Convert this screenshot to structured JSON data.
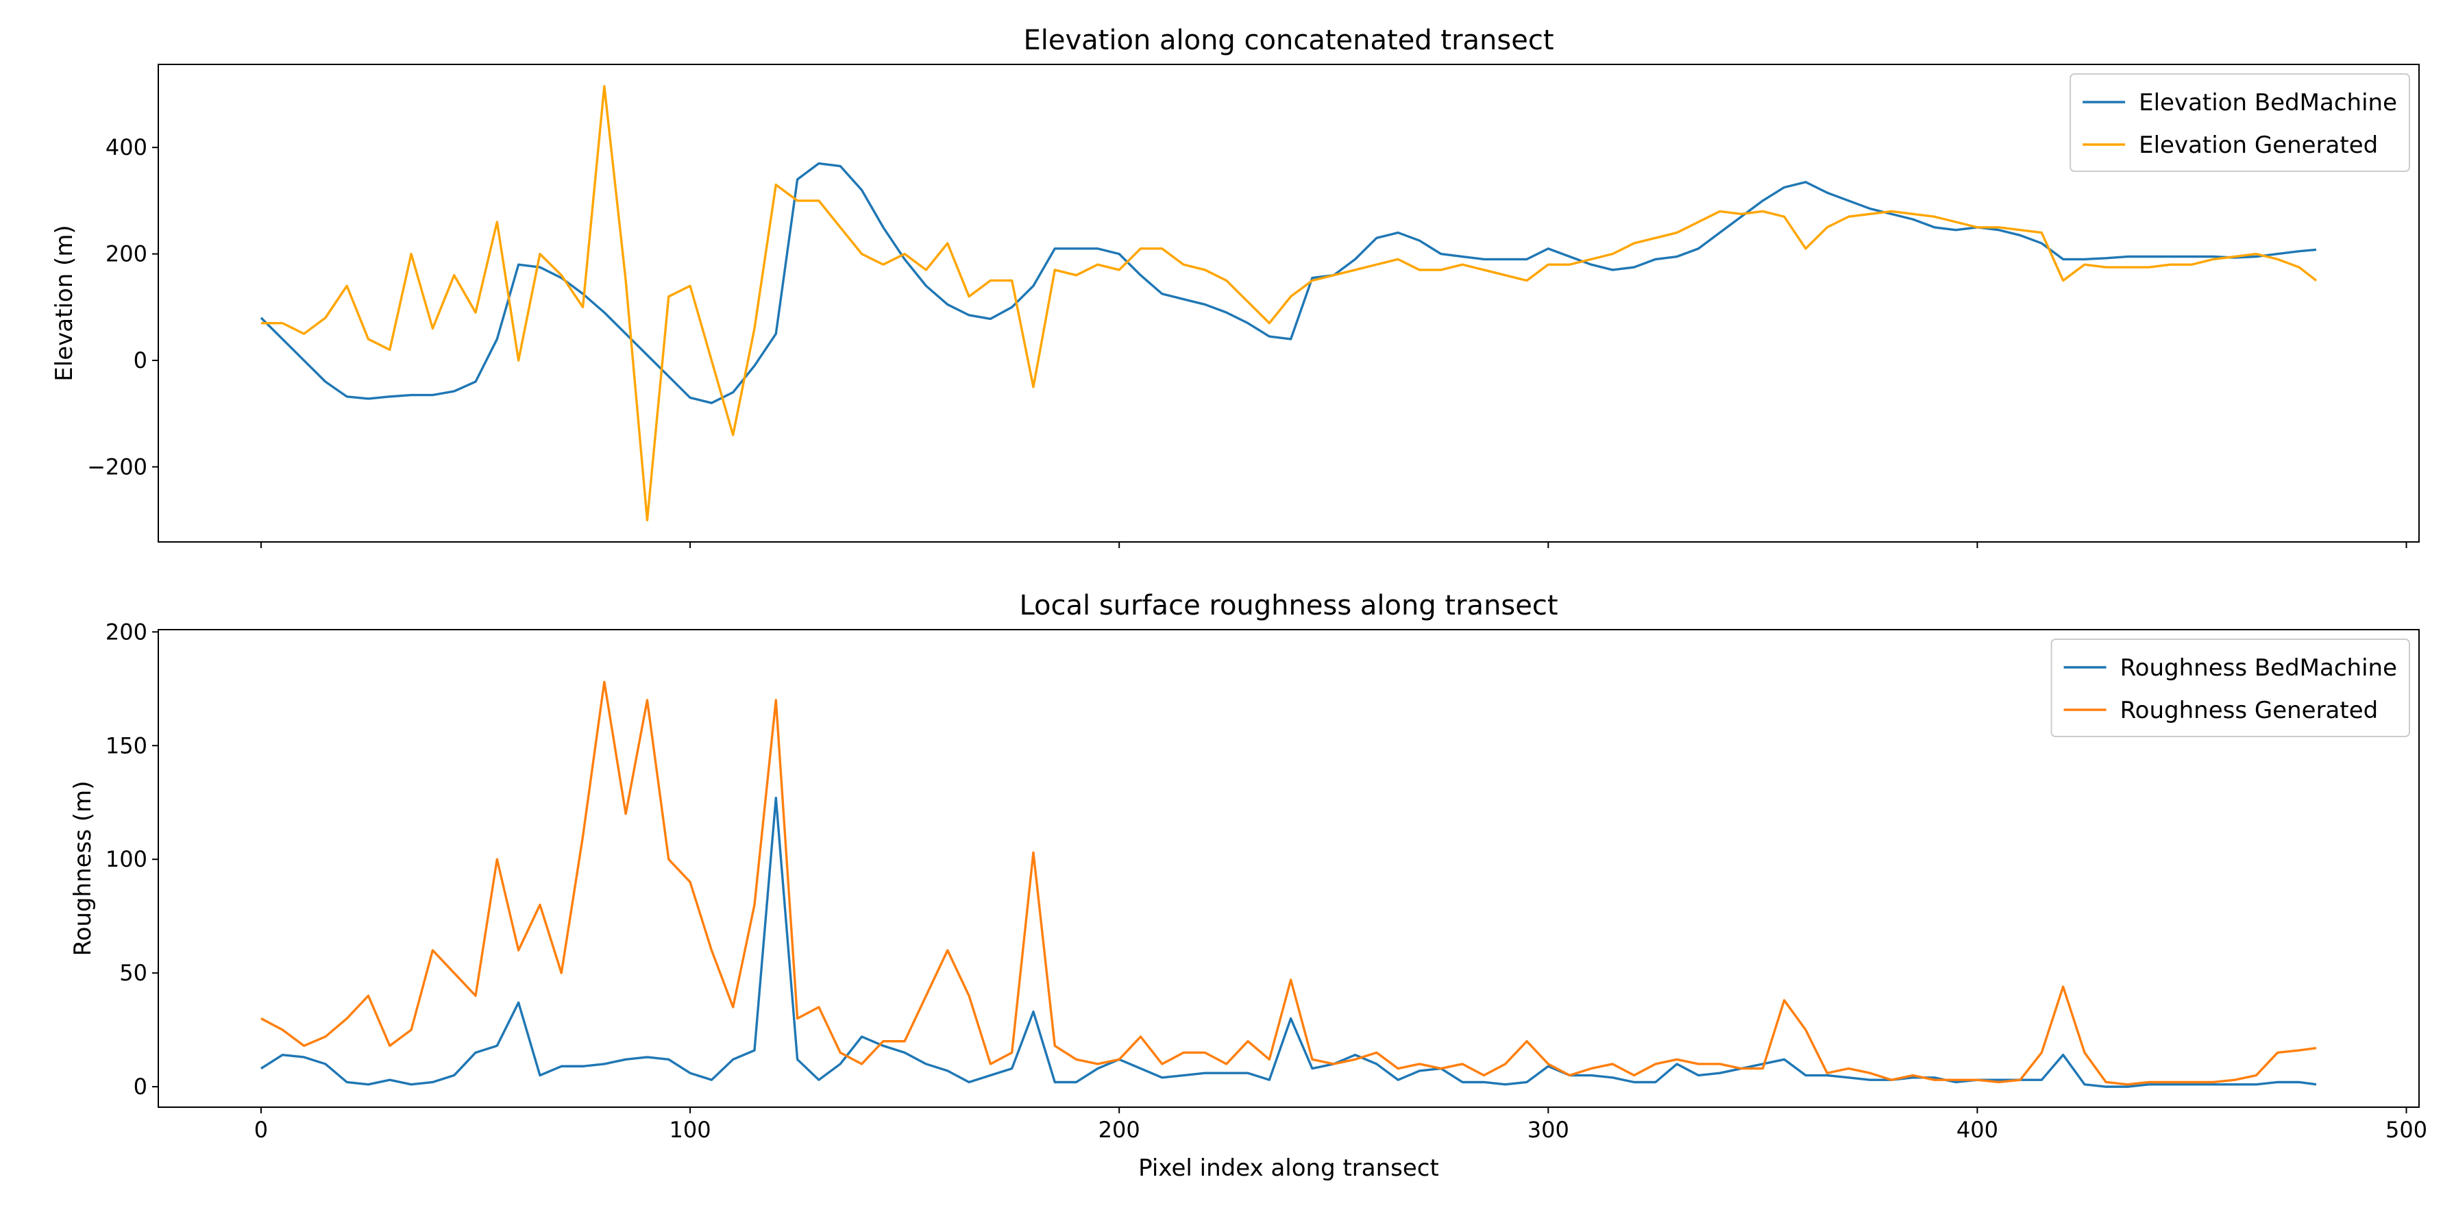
{
  "chart_data": [
    {
      "type": "line",
      "title": "Elevation along concatenated transect",
      "ylabel": "Elevation (m)",
      "xlim": [
        -23.95,
        502.95
      ],
      "ylim": [
        -341,
        556
      ],
      "yticks": [
        {
          "value": -200,
          "label": "−200"
        },
        0,
        200,
        400
      ],
      "legend": "upper right",
      "x": [
        0,
        5,
        10,
        15,
        20,
        25,
        30,
        35,
        40,
        45,
        50,
        55,
        60,
        65,
        70,
        75,
        80,
        85,
        90,
        95,
        100,
        105,
        110,
        115,
        120,
        125,
        130,
        135,
        140,
        145,
        150,
        155,
        160,
        165,
        170,
        175,
        180,
        185,
        190,
        195,
        200,
        205,
        210,
        215,
        220,
        225,
        230,
        235,
        240,
        245,
        250,
        255,
        260,
        265,
        270,
        275,
        280,
        285,
        290,
        295,
        300,
        305,
        310,
        315,
        320,
        325,
        330,
        335,
        340,
        345,
        350,
        355,
        360,
        365,
        370,
        375,
        380,
        385,
        390,
        395,
        400,
        405,
        410,
        415,
        420,
        425,
        430,
        435,
        440,
        445,
        450,
        455,
        460,
        465,
        470,
        475,
        479
      ],
      "series": [
        {
          "name": "Elevation BedMachine",
          "color": "#1f77b4",
          "values": [
            80,
            40,
            0,
            -40,
            -68,
            -72,
            -68,
            -65,
            -65,
            -58,
            -40,
            40,
            180,
            175,
            155,
            125,
            90,
            50,
            10,
            -30,
            -70,
            -80,
            -60,
            -10,
            50,
            340,
            370,
            365,
            320,
            250,
            190,
            140,
            105,
            85,
            78,
            100,
            140,
            210,
            210,
            210,
            200,
            160,
            125,
            115,
            105,
            90,
            70,
            45,
            40,
            155,
            160,
            190,
            230,
            240,
            225,
            200,
            195,
            190,
            190,
            190,
            210,
            195,
            180,
            170,
            175,
            190,
            195,
            210,
            240,
            270,
            300,
            325,
            335,
            315,
            300,
            285,
            275,
            265,
            250,
            245,
            250,
            245,
            235,
            220,
            190,
            190,
            192,
            195,
            195,
            195,
            195,
            195,
            193,
            195,
            200,
            205,
            208
          ]
        },
        {
          "name": "Elevation Generated",
          "color": "#ffa500",
          "values": [
            70,
            70,
            50,
            80,
            140,
            40,
            20,
            200,
            60,
            160,
            90,
            260,
            0,
            200,
            160,
            100,
            515,
            150,
            -300,
            120,
            140,
            0,
            -140,
            60,
            330,
            300,
            300,
            250,
            200,
            180,
            200,
            170,
            220,
            120,
            150,
            150,
            -50,
            170,
            160,
            180,
            170,
            210,
            210,
            180,
            170,
            150,
            110,
            70,
            120,
            150,
            160,
            170,
            180,
            190,
            170,
            170,
            180,
            170,
            160,
            150,
            180,
            180,
            190,
            200,
            220,
            230,
            240,
            260,
            280,
            275,
            280,
            270,
            210,
            250,
            270,
            275,
            280,
            275,
            270,
            260,
            250,
            250,
            245,
            240,
            150,
            180,
            175,
            175,
            175,
            180,
            180,
            190,
            195,
            200,
            190,
            175,
            150
          ]
        }
      ]
    },
    {
      "type": "line",
      "title": "Local surface roughness along transect",
      "xlabel": "Pixel index along transect",
      "ylabel": "Roughness (m)",
      "xlim": [
        -23.95,
        502.95
      ],
      "xticks": [
        0,
        100,
        200,
        300,
        400,
        500
      ],
      "ylim": [
        -9,
        201
      ],
      "yticks": [
        0,
        50,
        100,
        150,
        200
      ],
      "legend": "upper right",
      "x": [
        0,
        5,
        10,
        15,
        20,
        25,
        30,
        35,
        40,
        45,
        50,
        55,
        60,
        65,
        70,
        75,
        80,
        85,
        90,
        95,
        100,
        105,
        110,
        115,
        120,
        125,
        130,
        135,
        140,
        145,
        150,
        155,
        160,
        165,
        170,
        175,
        180,
        185,
        190,
        195,
        200,
        205,
        210,
        215,
        220,
        225,
        230,
        235,
        240,
        245,
        250,
        255,
        260,
        265,
        270,
        275,
        280,
        285,
        290,
        295,
        300,
        305,
        310,
        315,
        320,
        325,
        330,
        335,
        340,
        345,
        350,
        355,
        360,
        365,
        370,
        375,
        380,
        385,
        390,
        395,
        400,
        405,
        410,
        415,
        420,
        425,
        430,
        435,
        440,
        445,
        450,
        455,
        460,
        465,
        470,
        475,
        479
      ],
      "series": [
        {
          "name": "Roughness BedMachine",
          "color": "#1f77b4",
          "values": [
            8,
            14,
            13,
            10,
            2,
            1,
            3,
            1,
            2,
            5,
            15,
            18,
            37,
            5,
            9,
            9,
            10,
            12,
            13,
            12,
            6,
            3,
            12,
            16,
            127,
            12,
            3,
            10,
            22,
            18,
            15,
            10,
            7,
            2,
            5,
            8,
            33,
            2,
            2,
            8,
            12,
            8,
            4,
            5,
            6,
            6,
            6,
            3,
            30,
            8,
            10,
            14,
            10,
            3,
            7,
            8,
            2,
            2,
            1,
            2,
            9,
            5,
            5,
            4,
            2,
            2,
            10,
            5,
            6,
            8,
            10,
            12,
            5,
            5,
            4,
            3,
            3,
            4,
            4,
            2,
            3,
            3,
            3,
            3,
            14,
            1,
            0,
            0,
            1,
            1,
            1,
            1,
            1,
            1,
            2,
            2,
            1
          ]
        },
        {
          "name": "Roughness Generated",
          "color": "#ff7f0e",
          "values": [
            30,
            25,
            18,
            22,
            30,
            40,
            18,
            25,
            60,
            50,
            40,
            100,
            60,
            80,
            50,
            110,
            178,
            120,
            170,
            100,
            90,
            60,
            35,
            80,
            170,
            30,
            35,
            15,
            10,
            20,
            20,
            40,
            60,
            40,
            10,
            15,
            103,
            18,
            12,
            10,
            12,
            22,
            10,
            15,
            15,
            10,
            20,
            12,
            47,
            12,
            10,
            12,
            15,
            8,
            10,
            8,
            10,
            5,
            10,
            20,
            10,
            5,
            8,
            10,
            5,
            10,
            12,
            10,
            10,
            8,
            8,
            38,
            25,
            6,
            8,
            6,
            3,
            5,
            3,
            3,
            3,
            2,
            3,
            15,
            44,
            15,
            2,
            1,
            2,
            2,
            2,
            2,
            3,
            5,
            15,
            16,
            17
          ]
        }
      ]
    }
  ]
}
